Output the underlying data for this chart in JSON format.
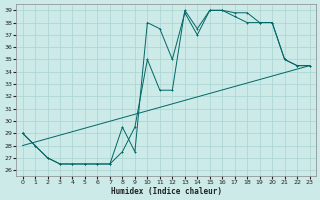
{
  "xlabel": "Humidex (Indice chaleur)",
  "bg_color": "#cceae8",
  "line_color": "#006666",
  "grid_color": "#aad4d0",
  "xlim": [
    -0.5,
    23.5
  ],
  "ylim": [
    25.5,
    39.5
  ],
  "xticks": [
    0,
    1,
    2,
    3,
    4,
    5,
    6,
    7,
    8,
    9,
    10,
    11,
    12,
    13,
    14,
    15,
    16,
    17,
    18,
    19,
    20,
    21,
    22,
    23
  ],
  "yticks": [
    26,
    27,
    28,
    29,
    30,
    31,
    32,
    33,
    34,
    35,
    36,
    37,
    38,
    39
  ],
  "line1_x": [
    0,
    1,
    2,
    3,
    4,
    5,
    6,
    7,
    8,
    9,
    10,
    11,
    12,
    13,
    14,
    15,
    16,
    17,
    18,
    19,
    20,
    21,
    22,
    23
  ],
  "line1_y": [
    29,
    28,
    27,
    26.5,
    26.5,
    26.5,
    26.5,
    26.5,
    27.5,
    29.5,
    35,
    32.5,
    32.5,
    39,
    37.5,
    39,
    39,
    38.5,
    38,
    38,
    38,
    35,
    34.5,
    34.5
  ],
  "line2_x": [
    0,
    1,
    2,
    3,
    4,
    5,
    6,
    7,
    8,
    9,
    10,
    11,
    12,
    13,
    14,
    15,
    16,
    17,
    18,
    19,
    20,
    21,
    22,
    23
  ],
  "line2_y": [
    29,
    28,
    27,
    26.5,
    26.5,
    26.5,
    26.5,
    26.5,
    29.5,
    27.5,
    38,
    37.5,
    35,
    38.8,
    37,
    39,
    39,
    38.8,
    38.8,
    38,
    38,
    35,
    34.5,
    34.5
  ],
  "line3_x": [
    0,
    23
  ],
  "line3_y": [
    28,
    34.5
  ]
}
